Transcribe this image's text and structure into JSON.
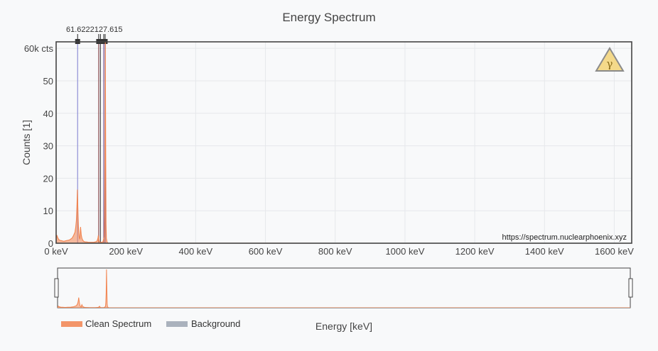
{
  "chart_data": {
    "type": "line",
    "title": "Energy Spectrum",
    "xlabel": "Energy [keV]",
    "ylabel": "Counts [1]",
    "xlim": [
      0,
      1650
    ],
    "ylim": [
      0,
      62
    ],
    "x_ticks": [
      0,
      200,
      400,
      600,
      800,
      1000,
      1200,
      1400,
      1600
    ],
    "x_tick_labels": [
      "0 keV",
      "200 keV",
      "400 keV",
      "600 keV",
      "800 keV",
      "1000 keV",
      "1200 keV",
      "1400 keV",
      "1600 keV"
    ],
    "y_ticks": [
      0,
      10,
      20,
      30,
      40,
      50,
      60
    ],
    "y_tick_labels": [
      "0",
      "10",
      "20",
      "30",
      "40",
      "50",
      "60k cts"
    ],
    "grid": true,
    "legend_position": "bottom-left",
    "watermark": "https://spectrum.nuclearphoenix.xyz",
    "series": [
      {
        "name": "Clean Spectrum",
        "color": "#f2844f",
        "x": [
          0,
          2,
          4,
          6,
          8,
          10,
          14,
          18,
          22,
          26,
          30,
          34,
          38,
          42,
          46,
          50,
          54,
          56,
          58,
          59,
          60,
          61,
          62,
          63,
          64,
          65,
          66,
          68,
          70,
          72,
          74,
          76,
          78,
          80,
          84,
          88,
          92,
          96,
          100,
          104,
          108,
          112,
          116,
          118,
          120,
          121,
          122,
          123,
          124,
          126,
          128,
          130,
          134,
          138,
          139,
          140,
          141,
          142,
          143,
          144,
          146,
          148,
          150,
          200,
          400,
          800,
          1200,
          1650
        ],
        "values": [
          0,
          2.5,
          1.9,
          1.4,
          1.1,
          0.9,
          0.8,
          0.7,
          0.6,
          0.7,
          0.8,
          0.9,
          1.0,
          1.3,
          1.6,
          2.4,
          3.4,
          4.8,
          7.0,
          9.5,
          12.5,
          16.5,
          12.0,
          8.0,
          5.0,
          3.2,
          2.0,
          1.2,
          5.0,
          2.5,
          1.5,
          1.0,
          0.7,
          0.5,
          0.4,
          0.4,
          0.3,
          0.3,
          0.3,
          0.3,
          0.3,
          0.4,
          0.5,
          0.9,
          1.6,
          2.4,
          1.5,
          0.8,
          0.5,
          0.3,
          0.3,
          0.3,
          0.4,
          2.0,
          8.5,
          25.0,
          62.0,
          30.0,
          6.0,
          1.5,
          0.4,
          0.1,
          0.05,
          0.02,
          0.01,
          0.0,
          0.0,
          0.0
        ]
      },
      {
        "name": "Background",
        "color": "#aab2bd",
        "x": [],
        "values": []
      }
    ],
    "peak_markers": [
      {
        "energy": 61.6,
        "label": "61.6",
        "color": "#8f8fd6"
      },
      {
        "energy": 122,
        "label": "122",
        "color": "#8a4e52"
      },
      {
        "energy": 127,
        "label": "127",
        "color": "#4a4a4a"
      },
      {
        "energy": 136.5,
        "label": "136.5",
        "color": "#7a5c9a"
      },
      {
        "energy": 140.5,
        "label": "140.5",
        "color": "#5e4fa8"
      }
    ],
    "peak_marker_text": "61.6222127.615"
  }
}
